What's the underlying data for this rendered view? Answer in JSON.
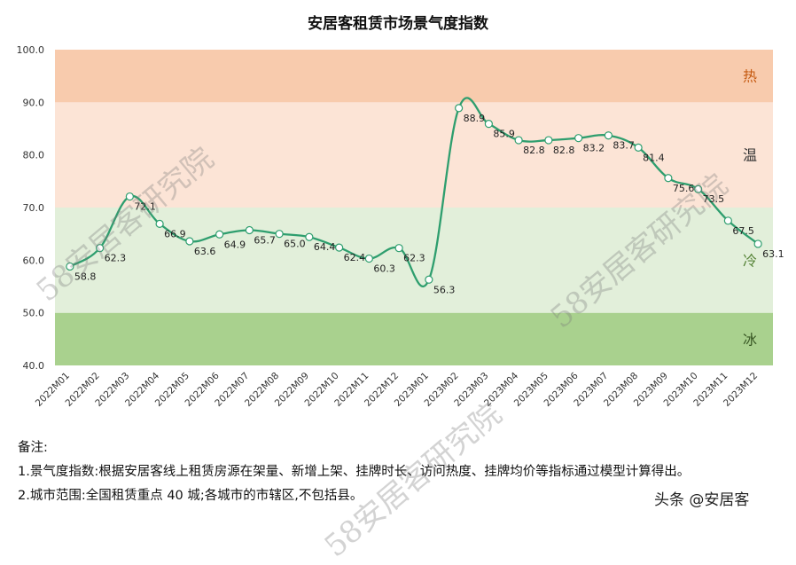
{
  "chart_data": {
    "type": "line",
    "title": "安居客租赁市场景气度指数",
    "xlabel": "",
    "ylabel": "",
    "ylim": [
      40,
      100
    ],
    "yticks": [
      "40.0",
      "50.0",
      "60.0",
      "70.0",
      "80.0",
      "90.0",
      "100.0"
    ],
    "grid": false,
    "categories": [
      "2022M01",
      "2022M02",
      "2022M03",
      "2022M04",
      "2022M05",
      "2022M06",
      "2022M07",
      "2022M08",
      "2022M09",
      "2022M10",
      "2022M11",
      "2022M12",
      "2023M01",
      "2023M02",
      "2023M03",
      "2023M04",
      "2023M05",
      "2023M06",
      "2023M07",
      "2023M08",
      "2023M09",
      "2023M10",
      "2023M11",
      "2023M12"
    ],
    "series": [
      {
        "name": "",
        "values": [
          58.8,
          62.3,
          72.1,
          66.9,
          63.6,
          64.9,
          65.7,
          65.0,
          64.4,
          62.4,
          60.3,
          62.3,
          56.3,
          88.9,
          85.9,
          82.8,
          82.8,
          83.2,
          83.7,
          81.4,
          75.6,
          73.5,
          67.5,
          63.1
        ],
        "data_labels": [
          "58.8",
          "62.3",
          "72.1",
          "66.9",
          "63.6",
          "64.9",
          "65.7",
          "65.0",
          "64.4",
          "62.4",
          "60.3",
          "62.3",
          "56.3",
          "88.9",
          "85.9",
          "82.8",
          "82.8",
          "83.2",
          "83.7",
          "81.4",
          "75.6",
          "73.5",
          "67.5",
          "63.1"
        ]
      }
    ],
    "bands": [
      {
        "label": "冰",
        "from": 40,
        "to": 50,
        "color": "#a9d18e",
        "label_color": "#375623"
      },
      {
        "label": "冷",
        "from": 50,
        "to": 70,
        "color": "#e2efda",
        "label_color": "#548235"
      },
      {
        "label": "温",
        "from": 70,
        "to": 90,
        "color": "#fce4d6",
        "label_color": "#333333"
      },
      {
        "label": "热",
        "from": 90,
        "to": 100,
        "color": "#f8cbad",
        "label_color": "#c55a11"
      }
    ],
    "line_color": "#2e9e6e"
  },
  "notes": {
    "heading": "备注:",
    "line1": "1.景气度指数:根据安居客线上租赁房源在架量、新增上架、挂牌时长、访问热度、挂牌均价等指标通过模型计算得出。",
    "line2": "2.城市范围:全国租赁重点 40 城;各城市的市辖区,不包括县。"
  },
  "source_mark": "头条 @安居客",
  "watermark_text": "58安居客研究院"
}
